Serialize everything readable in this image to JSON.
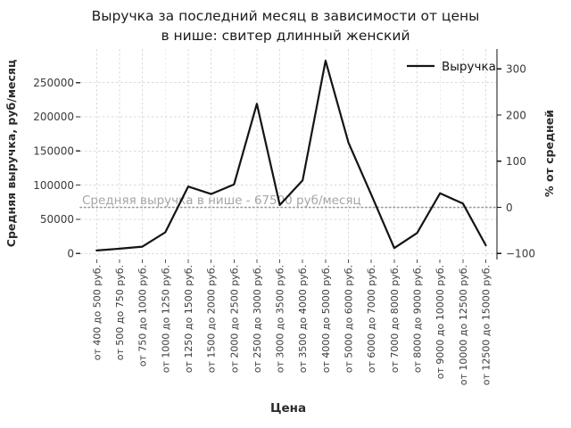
{
  "chart_data": {
    "type": "line",
    "title": "Выручка за последний месяц в зависимости от цены в нише: свитер длинный женский",
    "title_lines": [
      "Выручка за последний месяц в зависимости от цены",
      "в нише: свитер длинный женский"
    ],
    "xlabel": "Цена",
    "ylabel_left": "Средняя выручка, руб/месяц",
    "ylabel_right": "% от средней",
    "legend_position": "upper right",
    "grid": true,
    "categories": [
      "от 400 до 500 руб.",
      "от 500 до 750 руб.",
      "от 750 до 1000 руб.",
      "от 1000 до 1250 руб.",
      "от 1250 до 1500 руб.",
      "от 1500 до 2000 руб.",
      "от 2000 до 2500 руб.",
      "от 2500 до 3000 руб.",
      "от 3000 до 3500 руб.",
      "от 3500 до 4000 руб.",
      "от 4000 до 5000 руб.",
      "от 5000 до 6000 руб.",
      "от 6000 до 7000 руб.",
      "от 7000 до 8000 руб.",
      "от 8000 до 9000 руб.",
      "от 9000 до 10000 руб.",
      "от 10000 до 12500 руб.",
      "от 12500 до 15000 руб."
    ],
    "series": [
      {
        "name": "Выручка",
        "values": [
          4500,
          7000,
          10000,
          31000,
          98000,
          87000,
          101000,
          219000,
          71000,
          107000,
          282000,
          162000,
          86000,
          8000,
          30000,
          88000,
          73000,
          12000
        ]
      }
    ],
    "yticks_left": [
      0,
      50000,
      100000,
      150000,
      200000,
      250000
    ],
    "yticks_right_percent": [
      -100,
      0,
      100,
      200,
      300
    ],
    "average_line": {
      "value": 67500,
      "label": "Средняя выручка в нише - 67500 руб/месяц"
    },
    "colors": {
      "line": "#141414",
      "grid": "#dadada",
      "average_line": "#9c9c9c",
      "annotation_text": "#a6a6a6",
      "tick_label": "#3a3a3a",
      "axis_label": "#2b2b2b",
      "legend_text": "#141414"
    }
  }
}
